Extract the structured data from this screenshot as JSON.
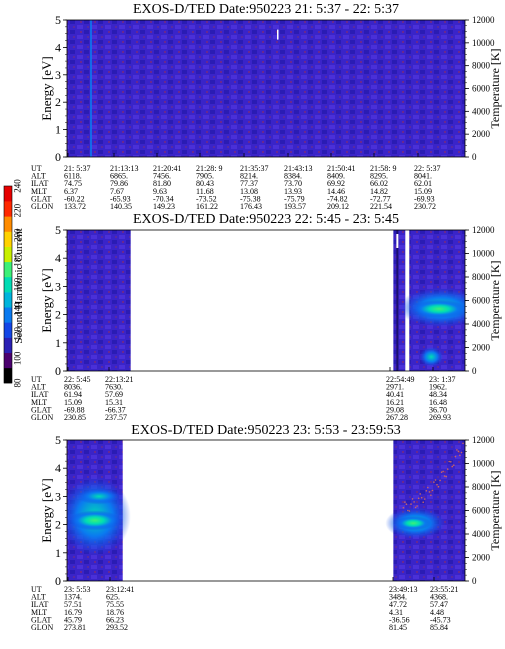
{
  "colorbar": {
    "label": "Second Harmonic Current",
    "ticks": [
      "80",
      "100",
      "120",
      "140",
      "160",
      "180",
      "200",
      "220",
      "240"
    ],
    "colors": [
      "#000000",
      "#4b006e",
      "#2a20b4",
      "#1346e6",
      "#0a7af0",
      "#00b4dc",
      "#00dcb4",
      "#3cf078",
      "#c8f000",
      "#ffd200",
      "#ff8c00",
      "#ff2800",
      "#e60000"
    ]
  },
  "chart_data": [
    {
      "type": "heatmap",
      "title": "EXOS-D/TED    Date:950223  21: 5:37 - 22: 5:37",
      "ylabel": "Energy [eV]",
      "y2label": "Temperature [K]",
      "ylim": [
        0,
        5
      ],
      "y2lim": [
        0,
        12000
      ],
      "yticks": [
        "0",
        "1",
        "2",
        "3",
        "4",
        "5"
      ],
      "y2ticks": [
        "0",
        "2000",
        "4000",
        "6000",
        "8000",
        "10000",
        "12000"
      ],
      "data_segments": [
        [
          0,
          1
        ]
      ],
      "colorbar_range": [
        80,
        240
      ],
      "table": {
        "row_labels": [
          "UT",
          "ALT",
          "ILAT",
          "MLT",
          "GLAT",
          "GLON"
        ],
        "columns": [
          [
            "21: 5:37",
            "6118.",
            "74.75",
            "6.37",
            "-60.22",
            "133.72"
          ],
          [
            "21:13:13",
            "6865.",
            "79.86",
            "7.67",
            "-65.93",
            "140.35"
          ],
          [
            "21:20:41",
            "7456.",
            "81.80",
            "9.63",
            "-70.34",
            "149.23"
          ],
          [
            "21:28: 9",
            "7905.",
            "80.43",
            "11.68",
            "-73.52",
            "161.22"
          ],
          [
            "21:35:37",
            "8214.",
            "77.37",
            "13.08",
            "-75.38",
            "176.43"
          ],
          [
            "21:43:13",
            "8384.",
            "73.70",
            "13.93",
            "-75.79",
            "193.57"
          ],
          [
            "21:50:41",
            "8409.",
            "69.92",
            "14.46",
            "-74.82",
            "209.12"
          ],
          [
            "21:58: 9",
            "8295.",
            "66.02",
            "14.82",
            "-72.77",
            "221.54"
          ],
          [
            "22: 5:37",
            "8041.",
            "62.01",
            "15.09",
            "-69.93",
            "230.72"
          ]
        ]
      }
    },
    {
      "type": "heatmap",
      "title": "EXOS-D/TED    Date:950223  22: 5:45 - 23: 5:45",
      "ylabel": "Energy [eV]",
      "y2label": "Temperature [K]",
      "ylim": [
        0,
        5
      ],
      "y2lim": [
        0,
        12000
      ],
      "yticks": [
        "0",
        "1",
        "2",
        "3",
        "4",
        "5"
      ],
      "y2ticks": [
        "0",
        "2000",
        "4000",
        "6000",
        "8000",
        "10000",
        "12000"
      ],
      "data_segments": [
        [
          0,
          0.16
        ],
        [
          0.82,
          0.85
        ],
        [
          0.86,
          1
        ]
      ],
      "colorbar_range": [
        80,
        240
      ],
      "table": {
        "row_labels": [
          "UT",
          "ALT",
          "ILAT",
          "MLT",
          "GLAT",
          "GLON"
        ],
        "columns": [
          [
            "22: 5:45",
            "8036.",
            "61.94",
            "15.09",
            "-69.88",
            "230.85"
          ],
          [
            "22:13:21",
            "7630.",
            "57.69",
            "15.31",
            "-66.37",
            "237.57"
          ],
          [
            "22:54:49",
            "2971.",
            "40.41",
            "16.21",
            "29.08",
            "267.28"
          ],
          [
            "23: 1:37",
            "1962.",
            "48.34",
            "16.48",
            "36.70",
            "269.93"
          ]
        ]
      }
    },
    {
      "type": "heatmap",
      "title": "EXOS-D/TED    Date:950223  23: 5:53 - 23:59:53",
      "ylabel": "Energy [eV]",
      "y2label": "Temperature [K]",
      "ylim": [
        0,
        5
      ],
      "y2lim": [
        0,
        12000
      ],
      "yticks": [
        "0",
        "1",
        "2",
        "3",
        "4",
        "5"
      ],
      "y2ticks": [
        "0",
        "2000",
        "4000",
        "6000",
        "8000",
        "10000",
        "12000"
      ],
      "data_segments": [
        [
          0,
          0.14
        ],
        [
          0.82,
          1
        ]
      ],
      "colorbar_range": [
        80,
        240
      ],
      "table": {
        "row_labels": [
          "UT",
          "ALT",
          "ILAT",
          "MLT",
          "GLAT",
          "GLON"
        ],
        "columns": [
          [
            "23: 5:53",
            "1374.",
            "57.51",
            "16.79",
            "45.79",
            "273.81"
          ],
          [
            "23:12:41",
            "625.",
            "75.55",
            "18.76",
            "66.23",
            "293.52"
          ],
          [
            "23:49:13",
            "3484.",
            "47.72",
            "4.31",
            "-36.56",
            "81.45"
          ],
          [
            "23:55:21",
            "4368.",
            "57.47",
            "4.48",
            "-45.73",
            "85.84"
          ]
        ]
      }
    }
  ]
}
